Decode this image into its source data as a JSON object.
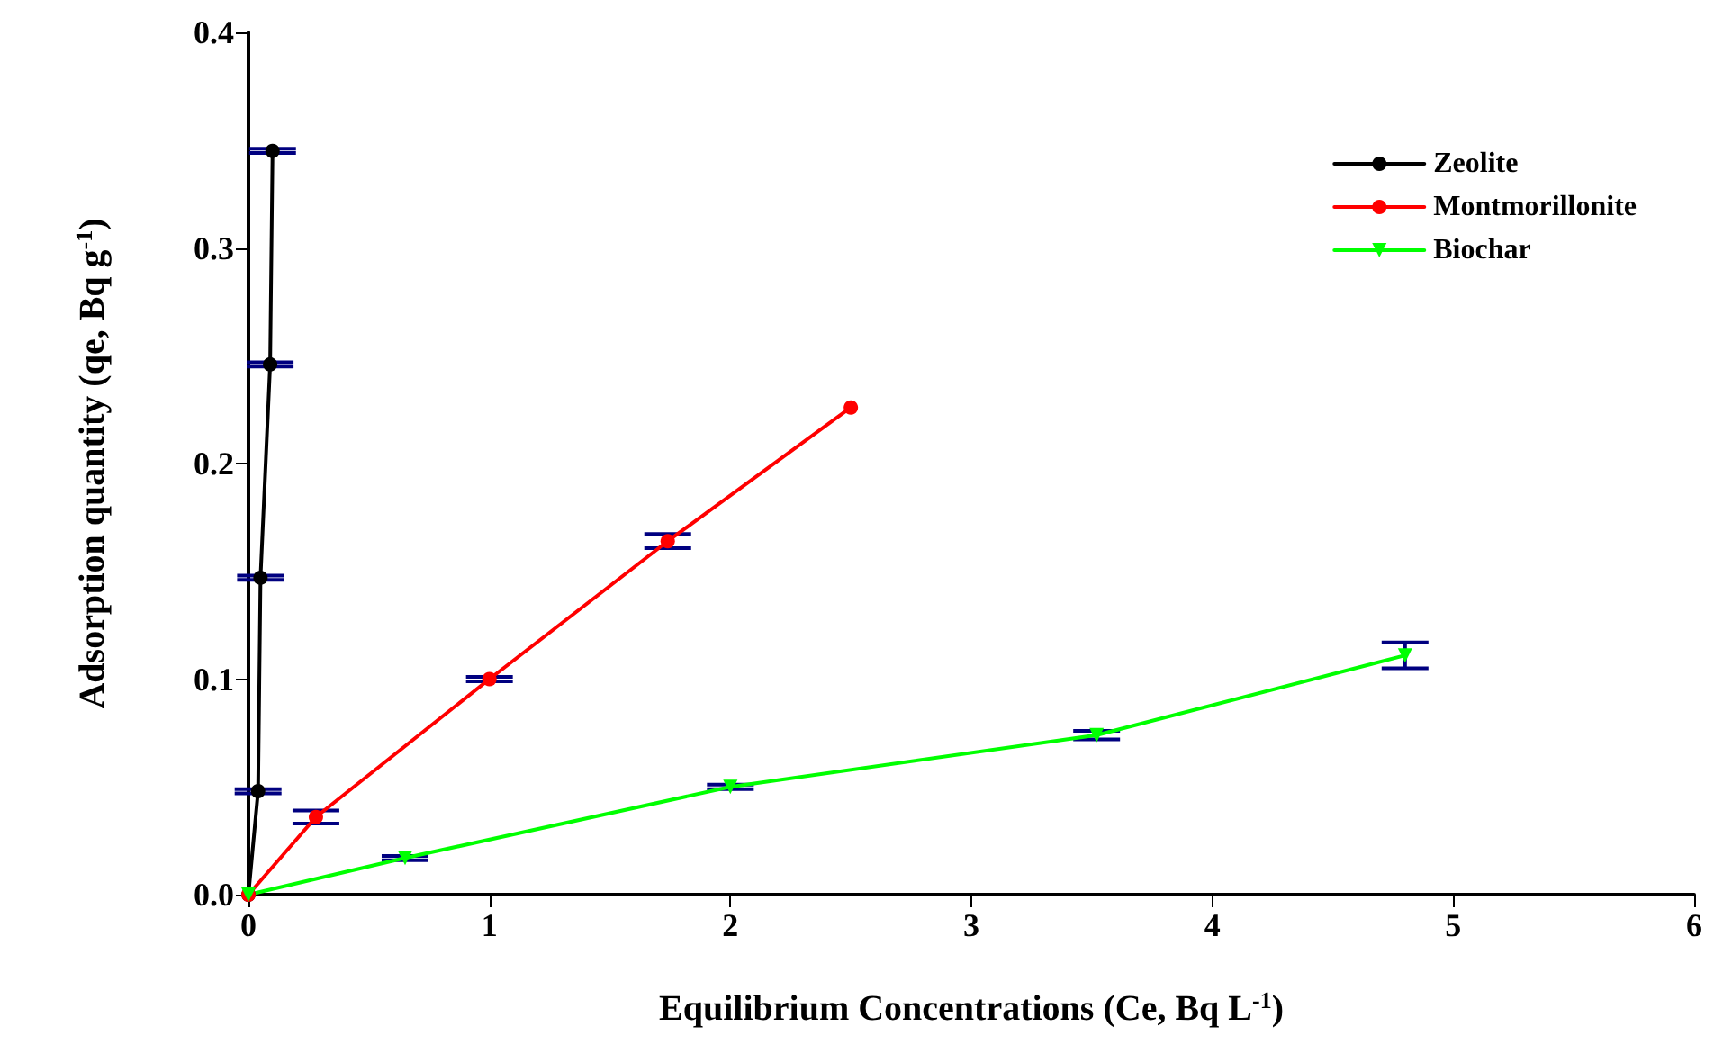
{
  "chart_data": {
    "type": "line",
    "xlabel": "Equilibrium Concentrations (Ce, Bq L$^{-1}$)",
    "ylabel": "Adsorption quantity (qe, Bq g$^{-1}$)",
    "xlim": [
      0,
      6
    ],
    "xticks": [
      0,
      1,
      2,
      3,
      4,
      5,
      6
    ],
    "ylim": [
      0,
      0.4
    ],
    "yticks": [
      {
        "value": 0,
        "label": "0.0"
      },
      {
        "value": 0.1,
        "label": "0.1"
      },
      {
        "value": 0.2,
        "label": "0.2"
      },
      {
        "value": 0.3,
        "label": "0.3"
      },
      {
        "value": 0.4,
        "label": "0.4"
      }
    ],
    "grid": false,
    "legend": "top right",
    "line_style": "solid",
    "series": [
      {
        "name": "Zeolite",
        "color": "#000000",
        "marker": "circle",
        "x": [
          0,
          0.04,
          0.05,
          0.09,
          0.1
        ],
        "values": [
          0,
          0.048,
          0.147,
          0.246,
          0.345
        ],
        "errors": [
          null,
          0.001,
          0.001,
          0.001,
          0.001
        ]
      },
      {
        "name": "Montmorillonite",
        "color": "#ff0000",
        "marker": "circle",
        "x": [
          0,
          0.28,
          1.0,
          1.74,
          2.5
        ],
        "values": [
          0,
          0.036,
          0.1,
          0.164,
          0.226
        ],
        "errors": [
          null,
          0.003,
          0.001,
          0.0033,
          null
        ]
      },
      {
        "name": "Biochar",
        "color": "#00ff00",
        "marker": "triangle",
        "x": [
          0,
          0.65,
          2.0,
          3.52,
          4.8
        ],
        "values": [
          0,
          0.017,
          0.05,
          0.074,
          0.111
        ],
        "errors": [
          null,
          0.001,
          0.001,
          0.002,
          0.006
        ]
      }
    ]
  }
}
